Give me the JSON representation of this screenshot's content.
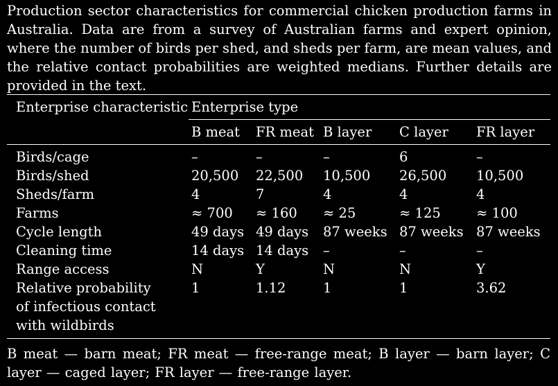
{
  "caption": "Production sector characteristics for commercial chicken production farms in Australia. Data are from a survey of Australian farms and expert opinion, where the number of birds per shed, and sheds per farm, are mean values, and the relative contact probabilities are weighted medians. Further details are provided in the text.",
  "table": {
    "col_header": "Enterprise characteristic",
    "group_header": "Enterprise type",
    "types": [
      "B meat",
      "FR meat",
      "B layer",
      "C layer",
      "FR layer"
    ],
    "rows": [
      {
        "label": "Birds/cage",
        "values": [
          "–",
          "–",
          "–",
          "6",
          "–"
        ]
      },
      {
        "label": "Birds/shed",
        "values": [
          "20,500",
          "22,500",
          "10,500",
          "26,500",
          "10,500"
        ]
      },
      {
        "label": "Sheds/farm",
        "values": [
          "4",
          "7",
          "4",
          "4",
          "4"
        ]
      },
      {
        "label": "Farms",
        "values": [
          "≈ 700",
          "≈ 160",
          "≈ 25",
          "≈ 125",
          "≈ 100"
        ]
      },
      {
        "label": "Cycle length",
        "values": [
          "49 days",
          "49 days",
          "87 weeks",
          "87 weeks",
          "87 weeks"
        ]
      },
      {
        "label": "Cleaning time",
        "values": [
          "14 days",
          "14 days",
          "–",
          "–",
          "–"
        ]
      },
      {
        "label": "Range access",
        "values": [
          "N",
          "Y",
          "N",
          "N",
          "Y"
        ]
      },
      {
        "label_lines": [
          "Relative probability",
          "of infectious contact",
          "with wildbirds"
        ],
        "values": [
          "1",
          "1.12",
          "1",
          "1",
          "3.62"
        ]
      }
    ]
  },
  "footnote": "B meat —  barn meat; FR meat —  free-range meat; B layer —  barn layer; C layer —  caged layer; FR layer —  free-range layer."
}
